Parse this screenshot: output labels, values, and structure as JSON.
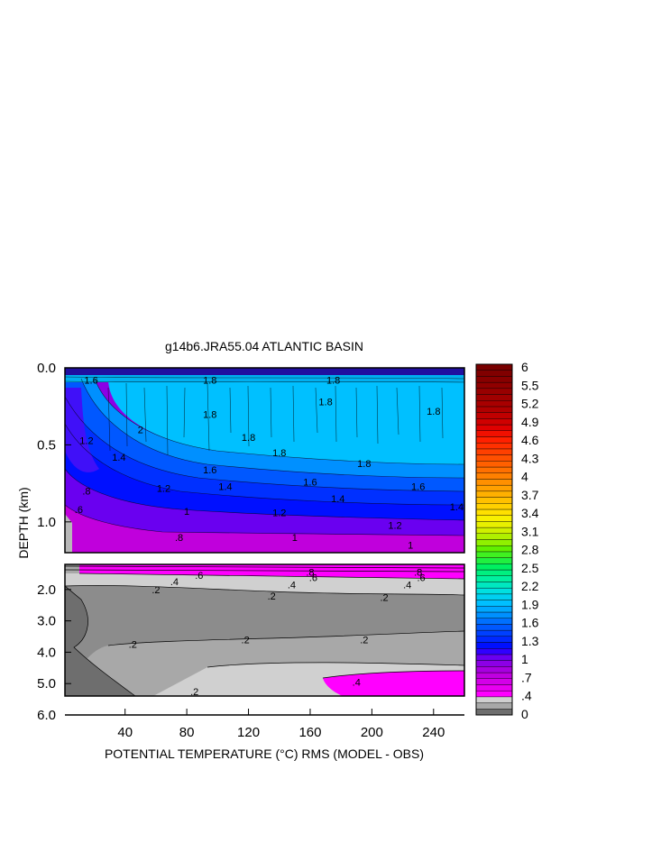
{
  "chart_data": {
    "type": "heatmap",
    "title": "g14b6.JRA55.04 ATLANTIC BASIN",
    "xlabel": "POTENTIAL TEMPERATURE (°C) RMS (MODEL - OBS)",
    "ylabel": "DEPTH (km)",
    "x_ticks": [
      "40",
      "80",
      "120",
      "160",
      "200",
      "240"
    ],
    "x_tick_values": [
      40,
      80,
      120,
      160,
      200,
      240
    ],
    "xlim": [
      1,
      260
    ],
    "upper_panel": {
      "ylim": [
        0,
        1.2
      ],
      "y_ticks": [
        "0.0",
        "0.5",
        "1.0"
      ],
      "y_tick_values": [
        0.0,
        0.5,
        1.0
      ],
      "contour_labels": [
        {
          "text": "1.6",
          "x": 18,
          "y": 0.08
        },
        {
          "text": "1.8",
          "x": 95,
          "y": 0.08
        },
        {
          "text": "1.8",
          "x": 175,
          "y": 0.08
        },
        {
          "text": "1.8",
          "x": 95,
          "y": 0.3
        },
        {
          "text": "1.8",
          "x": 170,
          "y": 0.22
        },
        {
          "text": "1.8",
          "x": 240,
          "y": 0.28
        },
        {
          "text": "1.8",
          "x": 120,
          "y": 0.45
        },
        {
          "text": "1.8",
          "x": 140,
          "y": 0.55
        },
        {
          "text": "1.8",
          "x": 195,
          "y": 0.62
        },
        {
          "text": "2",
          "x": 50,
          "y": 0.4
        },
        {
          "text": "1.2",
          "x": 15,
          "y": 0.47
        },
        {
          "text": "1.4",
          "x": 36,
          "y": 0.58
        },
        {
          "text": "1.6",
          "x": 95,
          "y": 0.66
        },
        {
          "text": "1.6",
          "x": 160,
          "y": 0.74
        },
        {
          "text": "1.6",
          "x": 230,
          "y": 0.77
        },
        {
          "text": "1.2",
          "x": 65,
          "y": 0.78
        },
        {
          "text": "1.4",
          "x": 105,
          "y": 0.77
        },
        {
          "text": "1.4",
          "x": 178,
          "y": 0.85
        },
        {
          "text": "1.4",
          "x": 255,
          "y": 0.9
        },
        {
          "text": "1.2",
          "x": 140,
          "y": 0.94
        },
        {
          "text": "1.2",
          "x": 215,
          "y": 1.02
        },
        {
          "text": "1",
          "x": 80,
          "y": 0.93
        },
        {
          "text": "1",
          "x": 150,
          "y": 1.1
        },
        {
          "text": "1",
          "x": 225,
          "y": 1.15
        },
        {
          "text": ".8",
          "x": 15,
          "y": 0.8
        },
        {
          "text": ".6",
          "x": 10,
          "y": 0.92
        },
        {
          "text": ".8",
          "x": 75,
          "y": 1.1
        }
      ]
    },
    "lower_panel": {
      "ylim": [
        1.2,
        6.0
      ],
      "y_ticks": [
        "2.0",
        "3.0",
        "4.0",
        "5.0",
        "6.0"
      ],
      "y_tick_values": [
        2.0,
        3.0,
        4.0,
        5.0,
        6.0
      ],
      "contour_labels": [
        {
          "text": ".6",
          "x": 88,
          "y": 1.55
        },
        {
          "text": ".4",
          "x": 72,
          "y": 1.75
        },
        {
          "text": ".8",
          "x": 160,
          "y": 1.45
        },
        {
          "text": ".6",
          "x": 162,
          "y": 1.62
        },
        {
          "text": ".4",
          "x": 148,
          "y": 1.85
        },
        {
          "text": ".8",
          "x": 230,
          "y": 1.45
        },
        {
          "text": ".6",
          "x": 232,
          "y": 1.62
        },
        {
          "text": ".4",
          "x": 223,
          "y": 1.85
        },
        {
          "text": ".2",
          "x": 60,
          "y": 2.0
        },
        {
          "text": ".2",
          "x": 135,
          "y": 2.2
        },
        {
          "text": ".2",
          "x": 208,
          "y": 2.25
        },
        {
          "text": ".2",
          "x": 45,
          "y": 3.75
        },
        {
          "text": ".2",
          "x": 118,
          "y": 3.6
        },
        {
          "text": ".2",
          "x": 195,
          "y": 3.6
        },
        {
          "text": ".4",
          "x": 190,
          "y": 4.95
        },
        {
          "text": ".2",
          "x": 85,
          "y": 5.25
        }
      ]
    },
    "colorbar": {
      "labels": [
        "6",
        "5.5",
        "5.2",
        "4.9",
        "4.6",
        "4.3",
        "4",
        "3.7",
        "3.4",
        "3.1",
        "2.8",
        "2.5",
        "2.2",
        "1.9",
        "1.6",
        "1.3",
        "1",
        ".7",
        ".4",
        "0"
      ],
      "levels": [
        0,
        0.2,
        0.4,
        0.5,
        0.6,
        0.7,
        0.8,
        0.9,
        1.0,
        1.1,
        1.2,
        1.3,
        1.4,
        1.5,
        1.6,
        1.7,
        1.8,
        1.9,
        2.0,
        2.1,
        2.2,
        2.3,
        2.4,
        2.5,
        2.6,
        2.7,
        2.8,
        2.9,
        3.0,
        3.1,
        3.2,
        3.3,
        3.4,
        3.5,
        3.6,
        3.7,
        3.8,
        3.9,
        4.0,
        4.1,
        4.2,
        4.3,
        4.4,
        4.5,
        4.6,
        4.7,
        4.8,
        4.9,
        5.0,
        5.1,
        5.2,
        5.3,
        5.4,
        5.5,
        5.6,
        5.7,
        5.8,
        5.9,
        6.0
      ],
      "colors": [
        "#6e6e6e",
        "#a8a8a8",
        "#d0d0d0",
        "#ff00ff",
        "#e800f0",
        "#d400e8",
        "#bf00e0",
        "#a800e0",
        "#8c00e6",
        "#6a00f0",
        "#3000ff",
        "#0010ff",
        "#0028ff",
        "#0040ff",
        "#0058ff",
        "#0070ff",
        "#0090ff",
        "#00a8ff",
        "#00c0ff",
        "#00d0f0",
        "#00e0e0",
        "#00e8c0",
        "#00f0a0",
        "#00f080",
        "#00f060",
        "#20f040",
        "#40f020",
        "#60f000",
        "#90f000",
        "#b0f000",
        "#d0f000",
        "#e8f000",
        "#f8f000",
        "#ffe000",
        "#ffd000",
        "#ffc000",
        "#ffb000",
        "#ffa000",
        "#ff9000",
        "#ff8000",
        "#ff7000",
        "#ff6000",
        "#ff5000",
        "#ff4000",
        "#ff3000",
        "#ff2000",
        "#f01000",
        "#e00000",
        "#d00000",
        "#c00000",
        "#b00000",
        "#a80000",
        "#a00000",
        "#980000",
        "#900000",
        "#880000",
        "#800000",
        "#780000"
      ]
    }
  }
}
